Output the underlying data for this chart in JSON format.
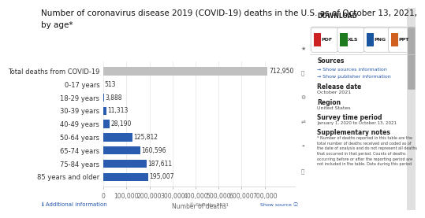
{
  "title_line1": "Number of coronavirus disease 2019 (COVID-19) deaths in the U.S. as of October 13, 2021,",
  "title_line2": "by age*",
  "categories": [
    "Total deaths from COVID-19",
    "0-17 years",
    "18-29 years",
    "30-39 years",
    "40-49 years",
    "50-64 years",
    "65-74 years",
    "75-84 years",
    "85 years and older"
  ],
  "values": [
    712950,
    513,
    3888,
    11313,
    28190,
    125812,
    160596,
    187611,
    195007
  ],
  "bar_colors": [
    "#c0c0c0",
    "#2a5db0",
    "#2a5db0",
    "#2a5db0",
    "#2a5db0",
    "#2a5db0",
    "#2a5db0",
    "#2a5db0",
    "#2a5db0"
  ],
  "xlabel": "Number of deaths",
  "xlim": [
    0,
    830000
  ],
  "xticks": [
    0,
    100000,
    200000,
    300000,
    400000,
    500000,
    600000,
    700000
  ],
  "xtick_labels": [
    "0",
    "100,000",
    "200,000",
    "300,000",
    "400,000",
    "500,000",
    "600,000",
    "700,000"
  ],
  "bg_color": "#ffffff",
  "value_labels": [
    "712,950",
    "513",
    "3,888",
    "11,313",
    "28,190",
    "125,812",
    "160,596",
    "187,611",
    "195,007"
  ],
  "statista_text": "© Statista 2021",
  "show_source_text": "Show source",
  "additional_info_text": "ℹ Additional information",
  "title_fontsize": 7.5,
  "label_fontsize": 6,
  "tick_fontsize": 5.5,
  "value_fontsize": 5.5,
  "right_panel_bg": "#f7f7f7",
  "icon_strip_bg": "#efefef",
  "download_buttons": [
    "PDF",
    "XLS",
    "PNG",
    "PPT"
  ],
  "download_colors": [
    "#cc2222",
    "#1e7a1e",
    "#1a56a0",
    "#d06020"
  ],
  "icon_symbols": [
    "★",
    "",
    "⚙",
    "⇄",
    "❝",
    "⎙"
  ],
  "sources_bold": "Sources",
  "sources_link1": "→ Show sources information",
  "sources_link2": "→ Show publisher information",
  "release_date_bold": "Release date",
  "release_date_val": "October 2021",
  "region_bold": "Region",
  "region_val": "United States",
  "survey_bold": "Survey time period",
  "survey_val": "January 1, 2020 to October 13, 2021",
  "supp_bold": "Supplementary notes",
  "supp_text": "* Number of deaths reported in this table are the\ntotal number of deaths received and coded as of\nthe date of analysis and do not represent all deaths\nthat occurred in that period. Counts of deaths\noccurring before or after the reporting period are\nnot included in the table. Data during this period"
}
